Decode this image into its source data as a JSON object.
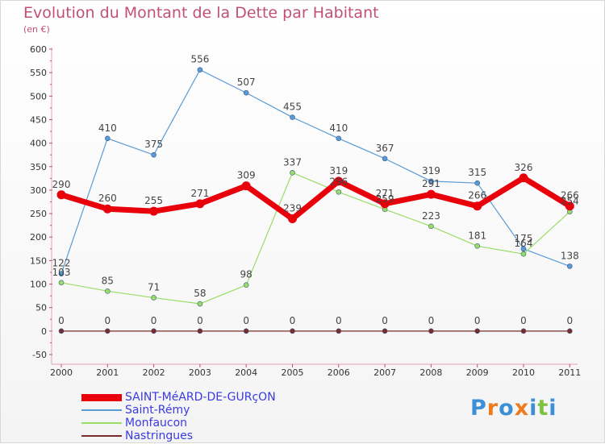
{
  "chart_data": {
    "type": "line",
    "title": "Evolution du Montant de la Dette par Habitant",
    "subtitle": "(en €)",
    "categories": [
      "2000",
      "2001",
      "2002",
      "2003",
      "2004",
      "2005",
      "2006",
      "2007",
      "2008",
      "2009",
      "2010",
      "2011"
    ],
    "ylim": [
      -50,
      600
    ],
    "yticks": [
      -50,
      0,
      50,
      100,
      150,
      200,
      250,
      300,
      350,
      400,
      450,
      500,
      550,
      600
    ],
    "grid": false,
    "legend_position": "bottom-left",
    "series": [
      {
        "name": "SAINT-MéARD-DE-GURçON",
        "color": "#e8000b",
        "values": [
          290,
          260,
          255,
          271,
          309,
          239,
          319,
          271,
          291,
          266,
          326,
          266
        ]
      },
      {
        "name": "Saint-Rémy",
        "color": "#5a9bd5",
        "values": [
          122,
          410,
          375,
          556,
          507,
          455,
          410,
          367,
          319,
          315,
          175,
          138
        ]
      },
      {
        "name": "Monfaucon",
        "color": "#99dd66",
        "values": [
          103,
          85,
          71,
          58,
          98,
          337,
          296,
          259,
          223,
          181,
          164,
          254
        ]
      },
      {
        "name": "Nastringues",
        "color": "#7a2b2b",
        "values": [
          0,
          0,
          0,
          0,
          0,
          0,
          0,
          0,
          0,
          0,
          0,
          0
        ]
      }
    ]
  },
  "logo": {
    "letters": [
      "P",
      "r",
      "o",
      "x",
      "i",
      "t",
      "i"
    ],
    "colors": [
      "#3d8fd8",
      "#f07a1e",
      "#3d8fd8",
      "#f07a1e",
      "#3d8fd8",
      "#7cc242",
      "#3d8fd8"
    ]
  }
}
